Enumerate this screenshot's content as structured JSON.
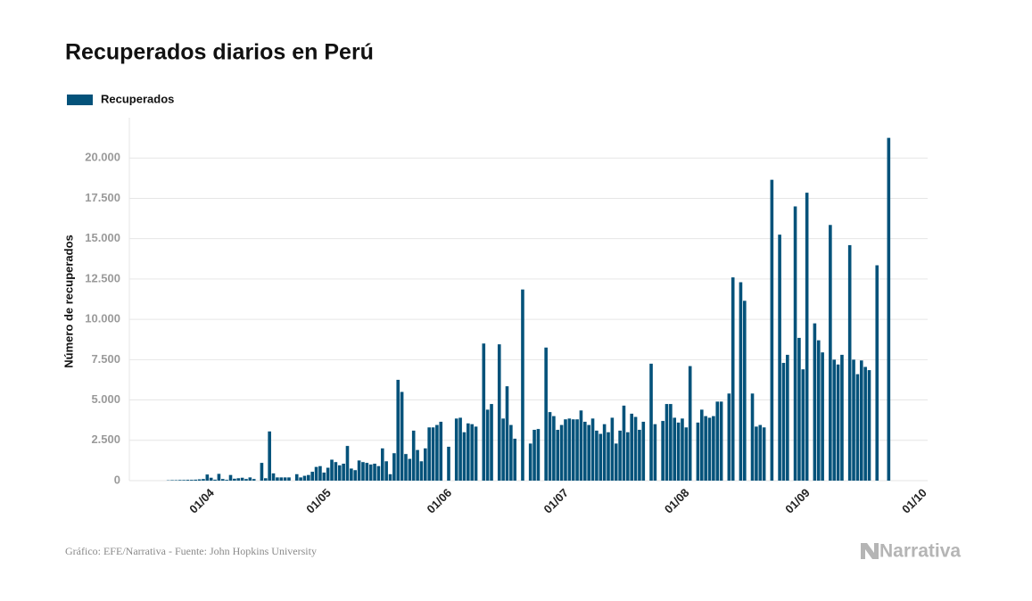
{
  "chart_data": {
    "type": "bar",
    "title": "Recuperados diarios en Perú",
    "y_label": "Número de recuperados",
    "source": "Gráfico: EFE/Narrativa - Fuente: John Hopkins University",
    "brand": "Narrativa",
    "categories": [
      "22/03",
      "23/03",
      "24/03",
      "25/03",
      "26/03",
      "27/03",
      "28/03",
      "29/03",
      "30/03",
      "31/03",
      "01/04",
      "02/04",
      "03/04",
      "04/04",
      "05/04",
      "06/04",
      "07/04",
      "08/04",
      "09/04",
      "10/04",
      "11/04",
      "12/04",
      "13/04",
      "14/04",
      "15/04",
      "16/04",
      "17/04",
      "18/04",
      "19/04",
      "20/04",
      "21/04",
      "22/04",
      "23/04",
      "24/04",
      "25/04",
      "26/04",
      "27/04",
      "28/04",
      "29/04",
      "30/04",
      "01/05",
      "02/05",
      "03/05",
      "04/05",
      "05/05",
      "06/05",
      "07/05",
      "08/05",
      "09/05",
      "10/05",
      "11/05",
      "12/05",
      "13/05",
      "14/05",
      "15/05",
      "16/05",
      "17/05",
      "18/05",
      "19/05",
      "20/05",
      "21/05",
      "22/05",
      "23/05",
      "24/05",
      "25/05",
      "26/05",
      "27/05",
      "28/05",
      "29/05",
      "30/05",
      "31/05",
      "01/06",
      "02/06",
      "03/06",
      "04/06",
      "05/06",
      "06/06",
      "07/06",
      "08/06",
      "09/06",
      "10/06",
      "11/06",
      "12/06",
      "13/06",
      "14/06",
      "15/06",
      "16/06",
      "17/06",
      "18/06",
      "19/06",
      "20/06",
      "21/06",
      "22/06",
      "23/06",
      "24/06",
      "25/06",
      "26/06",
      "27/06",
      "28/06",
      "29/06",
      "30/06",
      "01/07",
      "02/07",
      "03/07",
      "04/07",
      "05/07",
      "06/07",
      "07/07",
      "08/07",
      "09/07",
      "10/07",
      "11/07",
      "12/07",
      "13/07",
      "14/07",
      "15/07",
      "16/07",
      "17/07",
      "18/07",
      "19/07",
      "20/07",
      "21/07",
      "22/07",
      "23/07",
      "24/07",
      "25/07",
      "26/07",
      "27/07",
      "28/07",
      "29/07",
      "30/07",
      "31/07",
      "01/08",
      "02/08",
      "03/08",
      "04/08",
      "05/08",
      "06/08",
      "07/08",
      "08/08",
      "09/08",
      "10/08",
      "11/08",
      "12/08",
      "13/08",
      "14/08",
      "15/08",
      "16/08",
      "17/08",
      "18/08",
      "19/08",
      "20/08",
      "21/08",
      "22/08",
      "23/08",
      "24/08",
      "25/08",
      "26/08",
      "27/08",
      "28/08",
      "29/08",
      "30/08",
      "31/08",
      "01/09",
      "02/09",
      "03/09",
      "04/09",
      "05/09",
      "06/09",
      "07/09",
      "08/09",
      "09/09",
      "10/09",
      "11/09",
      "12/09",
      "13/09",
      "14/09",
      "15/09",
      "16/09",
      "17/09",
      "18/09",
      "19/09",
      "20/09",
      "21/09",
      "22/09",
      "23/09"
    ],
    "series": [
      {
        "name": "Recuperados",
        "color": "#04527a",
        "values": [
          20,
          30,
          30,
          40,
          40,
          50,
          50,
          60,
          80,
          100,
          380,
          180,
          60,
          420,
          100,
          50,
          350,
          120,
          150,
          180,
          100,
          200,
          100,
          null,
          1100,
          150,
          3050,
          450,
          200,
          200,
          200,
          200,
          null,
          400,
          200,
          300,
          350,
          550,
          850,
          900,
          500,
          800,
          1300,
          1150,
          950,
          1050,
          2150,
          750,
          650,
          1250,
          1150,
          1100,
          1000,
          1050,
          900,
          2000,
          1200,
          400,
          1700,
          6250,
          5500,
          1650,
          1350,
          3100,
          1900,
          1200,
          2000,
          3300,
          3300,
          3450,
          3650,
          null,
          2100,
          null,
          3850,
          3900,
          3000,
          3550,
          3500,
          3350,
          null,
          8500,
          4400,
          4750,
          null,
          8450,
          3850,
          5850,
          3450,
          2600,
          null,
          11850,
          null,
          2300,
          3150,
          3200,
          null,
          8250,
          4250,
          4000,
          3150,
          3450,
          3800,
          3850,
          3800,
          3800,
          4350,
          3650,
          3450,
          3850,
          3100,
          2900,
          3500,
          3000,
          3900,
          2300,
          3100,
          4650,
          3000,
          4150,
          3950,
          3150,
          3650,
          null,
          7250,
          3500,
          null,
          3700,
          4750,
          4750,
          3900,
          3600,
          3850,
          3300,
          7100,
          null,
          3600,
          4400,
          4000,
          3900,
          4000,
          4900,
          4900,
          null,
          5400,
          12600,
          null,
          12300,
          11150,
          null,
          5400,
          3350,
          3450,
          3300,
          null,
          18650,
          null,
          15250,
          7300,
          7800,
          null,
          17000,
          8850,
          6900,
          17850,
          null,
          9750,
          8700,
          7950,
          null,
          15850,
          7500,
          7200,
          7800,
          null,
          14600,
          7500,
          6600,
          7450,
          7050,
          6850,
          null,
          13350,
          null,
          null,
          21250
        ]
      }
    ],
    "xlim": [
      "12/03",
      "03/10"
    ],
    "xticks": [
      "01/04",
      "01/05",
      "01/06",
      "01/07",
      "01/08",
      "01/09",
      "01/10"
    ],
    "ylim": [
      0,
      22500
    ],
    "yticks": [
      0,
      {
        "value": 2500,
        "label": "2.500"
      },
      {
        "value": 5000,
        "label": "5.000"
      },
      {
        "value": 7500,
        "label": "7.500"
      },
      {
        "value": 10000,
        "label": "10.000"
      },
      {
        "value": 12500,
        "label": "12.500"
      },
      {
        "value": 15000,
        "label": "15.000"
      },
      {
        "value": 17500,
        "label": "17.500"
      },
      {
        "value": 20000,
        "label": "20.000"
      }
    ],
    "grid": true,
    "legend": "top-left"
  }
}
